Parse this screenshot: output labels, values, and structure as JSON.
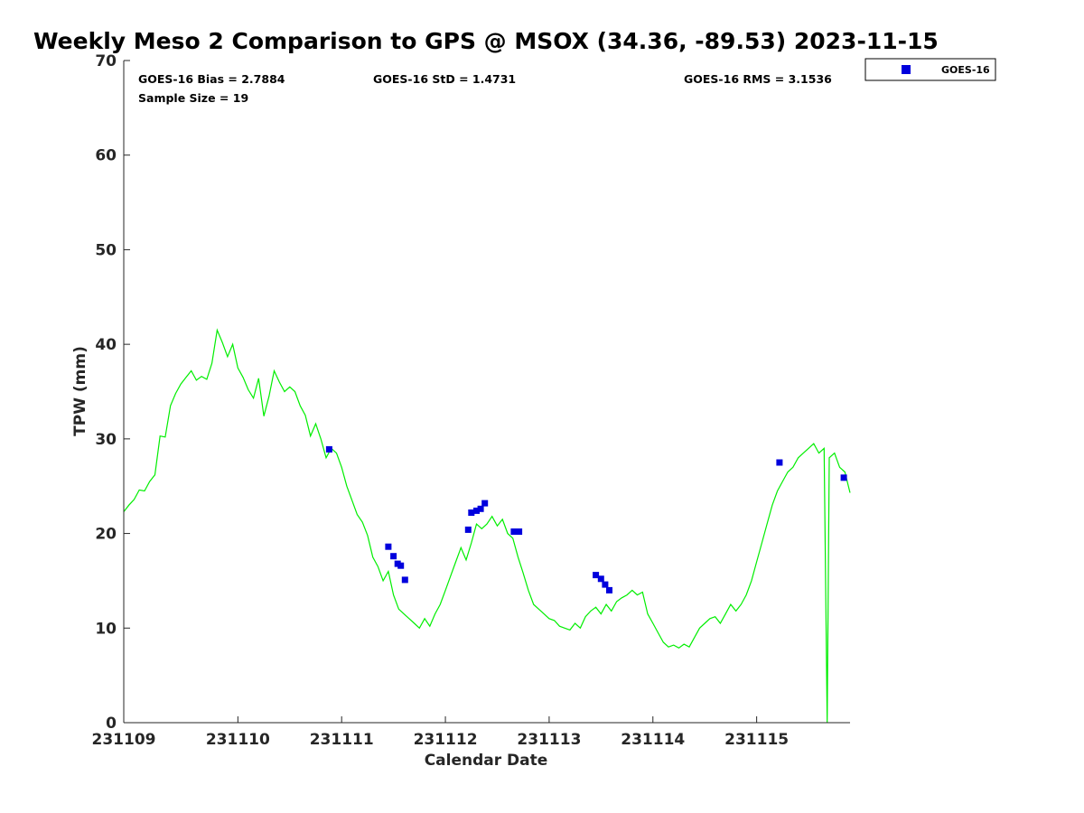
{
  "chart_data": {
    "type": "scatter",
    "title": "Weekly Meso 2 Comparison to GPS @ MSOX (34.36, -89.53) 2023-11-15",
    "xlabel": "Calendar Date",
    "ylabel": "TPW (mm)",
    "xlim_days": [
      -0.1,
      6.9
    ],
    "ylim": [
      0,
      70
    ],
    "x_ticks": [
      {
        "day": -0.1,
        "label": "231109"
      },
      {
        "day": 1,
        "label": "231110"
      },
      {
        "day": 2,
        "label": "231111"
      },
      {
        "day": 3,
        "label": "231112"
      },
      {
        "day": 4,
        "label": "231113"
      },
      {
        "day": 5,
        "label": "231114"
      },
      {
        "day": 6,
        "label": "231115"
      }
    ],
    "y_ticks": [
      0,
      10,
      20,
      30,
      40,
      50,
      60,
      70
    ],
    "stats": {
      "bias": "GOES-16 Bias = 2.7884",
      "std": "GOES-16 StD = 1.4731",
      "rms": "GOES-16 RMS = 3.1536",
      "sample_size": "Sample Size = 19"
    },
    "legend": {
      "position": "outside-top-right",
      "entries": [
        "GOES-16"
      ]
    },
    "colors": {
      "gps_line": "#00ee00",
      "goes16": "#0000dd",
      "axis": "#262626"
    },
    "series": [
      {
        "name": "GOES-16",
        "marker": "square",
        "points": [
          [
            1.88,
            28.9
          ],
          [
            2.45,
            18.6
          ],
          [
            2.5,
            17.6
          ],
          [
            2.54,
            16.8
          ],
          [
            2.57,
            16.6
          ],
          [
            2.61,
            15.1
          ],
          [
            3.22,
            20.4
          ],
          [
            3.25,
            22.2
          ],
          [
            3.3,
            22.4
          ],
          [
            3.34,
            22.6
          ],
          [
            3.38,
            23.2
          ],
          [
            3.66,
            20.2
          ],
          [
            3.71,
            20.2
          ],
          [
            4.45,
            15.6
          ],
          [
            4.5,
            15.2
          ],
          [
            4.54,
            14.6
          ],
          [
            4.58,
            14.0
          ],
          [
            6.22,
            27.5
          ],
          [
            6.84,
            25.9
          ]
        ]
      }
    ],
    "gps_line": [
      [
        -0.1,
        22.3
      ],
      [
        -0.05,
        23.0
      ],
      [
        0.0,
        23.6
      ],
      [
        0.05,
        24.6
      ],
      [
        0.1,
        24.5
      ],
      [
        0.15,
        25.5
      ],
      [
        0.2,
        26.2
      ],
      [
        0.25,
        30.3
      ],
      [
        0.3,
        30.2
      ],
      [
        0.35,
        33.5
      ],
      [
        0.4,
        34.8
      ],
      [
        0.45,
        35.8
      ],
      [
        0.5,
        36.5
      ],
      [
        0.55,
        37.2
      ],
      [
        0.6,
        36.2
      ],
      [
        0.65,
        36.6
      ],
      [
        0.7,
        36.3
      ],
      [
        0.75,
        38.0
      ],
      [
        0.8,
        41.5
      ],
      [
        0.85,
        40.2
      ],
      [
        0.9,
        38.7
      ],
      [
        0.95,
        40.0
      ],
      [
        1.0,
        37.5
      ],
      [
        1.05,
        36.5
      ],
      [
        1.1,
        35.2
      ],
      [
        1.15,
        34.3
      ],
      [
        1.2,
        36.4
      ],
      [
        1.25,
        32.4
      ],
      [
        1.3,
        34.5
      ],
      [
        1.35,
        37.2
      ],
      [
        1.4,
        36.0
      ],
      [
        1.45,
        35.0
      ],
      [
        1.5,
        35.5
      ],
      [
        1.55,
        35.0
      ],
      [
        1.6,
        33.5
      ],
      [
        1.65,
        32.5
      ],
      [
        1.7,
        30.3
      ],
      [
        1.75,
        31.6
      ],
      [
        1.8,
        30.0
      ],
      [
        1.85,
        28.0
      ],
      [
        1.9,
        29.0
      ],
      [
        1.95,
        28.5
      ],
      [
        2.0,
        27.0
      ],
      [
        2.05,
        25.0
      ],
      [
        2.1,
        23.5
      ],
      [
        2.15,
        22.0
      ],
      [
        2.2,
        21.2
      ],
      [
        2.25,
        19.8
      ],
      [
        2.3,
        17.5
      ],
      [
        2.35,
        16.5
      ],
      [
        2.4,
        15.0
      ],
      [
        2.45,
        16.0
      ],
      [
        2.5,
        13.5
      ],
      [
        2.55,
        12.0
      ],
      [
        2.6,
        11.5
      ],
      [
        2.65,
        11.0
      ],
      [
        2.7,
        10.5
      ],
      [
        2.75,
        10.0
      ],
      [
        2.8,
        11.0
      ],
      [
        2.85,
        10.2
      ],
      [
        2.9,
        11.5
      ],
      [
        2.95,
        12.5
      ],
      [
        3.0,
        14.0
      ],
      [
        3.05,
        15.5
      ],
      [
        3.1,
        17.0
      ],
      [
        3.15,
        18.5
      ],
      [
        3.2,
        17.2
      ],
      [
        3.25,
        19.0
      ],
      [
        3.3,
        21.0
      ],
      [
        3.35,
        20.5
      ],
      [
        3.4,
        21.0
      ],
      [
        3.45,
        21.8
      ],
      [
        3.5,
        20.8
      ],
      [
        3.55,
        21.5
      ],
      [
        3.6,
        20.0
      ],
      [
        3.65,
        19.5
      ],
      [
        3.7,
        17.5
      ],
      [
        3.75,
        15.8
      ],
      [
        3.8,
        14.0
      ],
      [
        3.85,
        12.5
      ],
      [
        3.9,
        12.0
      ],
      [
        3.95,
        11.5
      ],
      [
        4.0,
        11.0
      ],
      [
        4.05,
        10.8
      ],
      [
        4.1,
        10.2
      ],
      [
        4.15,
        10.0
      ],
      [
        4.2,
        9.8
      ],
      [
        4.25,
        10.5
      ],
      [
        4.3,
        10.0
      ],
      [
        4.35,
        11.2
      ],
      [
        4.4,
        11.8
      ],
      [
        4.45,
        12.2
      ],
      [
        4.5,
        11.5
      ],
      [
        4.55,
        12.5
      ],
      [
        4.6,
        11.8
      ],
      [
        4.65,
        12.8
      ],
      [
        4.7,
        13.2
      ],
      [
        4.75,
        13.5
      ],
      [
        4.8,
        14.0
      ],
      [
        4.85,
        13.5
      ],
      [
        4.9,
        13.8
      ],
      [
        4.95,
        11.5
      ],
      [
        5.0,
        10.5
      ],
      [
        5.05,
        9.5
      ],
      [
        5.1,
        8.5
      ],
      [
        5.15,
        8.0
      ],
      [
        5.2,
        8.2
      ],
      [
        5.25,
        7.9
      ],
      [
        5.3,
        8.3
      ],
      [
        5.35,
        8.0
      ],
      [
        5.4,
        9.0
      ],
      [
        5.45,
        10.0
      ],
      [
        5.5,
        10.5
      ],
      [
        5.55,
        11.0
      ],
      [
        5.6,
        11.2
      ],
      [
        5.65,
        10.5
      ],
      [
        5.7,
        11.5
      ],
      [
        5.75,
        12.5
      ],
      [
        5.8,
        11.8
      ],
      [
        5.85,
        12.5
      ],
      [
        5.9,
        13.5
      ],
      [
        5.95,
        15.0
      ],
      [
        6.0,
        17.0
      ],
      [
        6.05,
        19.0
      ],
      [
        6.1,
        21.0
      ],
      [
        6.15,
        23.0
      ],
      [
        6.2,
        24.5
      ],
      [
        6.25,
        25.5
      ],
      [
        6.3,
        26.5
      ],
      [
        6.35,
        27.0
      ],
      [
        6.4,
        28.0
      ],
      [
        6.45,
        28.5
      ],
      [
        6.5,
        29.0
      ],
      [
        6.55,
        29.5
      ],
      [
        6.6,
        28.5
      ],
      [
        6.65,
        29.0
      ],
      [
        6.68,
        0.0
      ],
      [
        6.7,
        28.0
      ],
      [
        6.75,
        28.5
      ],
      [
        6.8,
        27.0
      ],
      [
        6.85,
        26.5
      ],
      [
        6.9,
        24.3
      ]
    ]
  }
}
